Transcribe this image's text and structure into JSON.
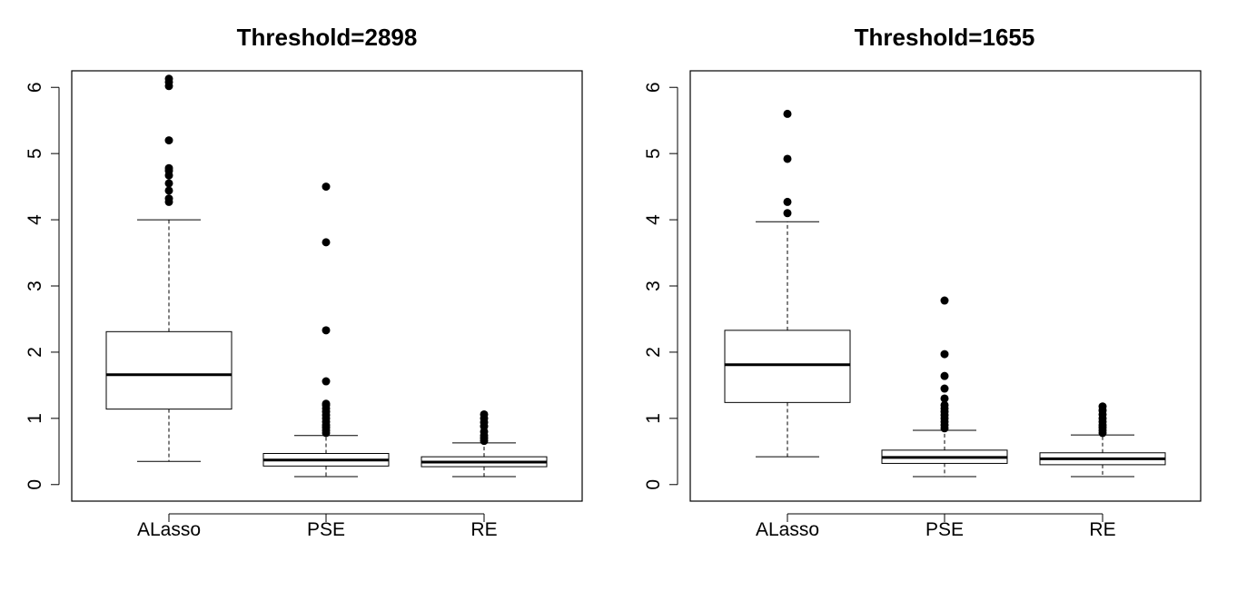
{
  "chart_data": [
    {
      "type": "boxplot",
      "title": "Threshold=2898",
      "categories": [
        "ALasso",
        "PSE",
        "RE"
      ],
      "ylim": [
        -0.25,
        6.25
      ],
      "yticks": [
        0,
        1,
        2,
        3,
        4,
        5,
        6
      ],
      "series": [
        {
          "category": "ALasso",
          "whisker_low": 0.35,
          "q1": 1.14,
          "median": 1.66,
          "q3": 2.31,
          "whisker_high": 4.0,
          "outliers": [
            4.27,
            4.32,
            4.44,
            4.55,
            4.67,
            4.74,
            4.78,
            5.2,
            6.02,
            6.08,
            6.13
          ]
        },
        {
          "category": "PSE",
          "whisker_low": 0.12,
          "q1": 0.28,
          "median": 0.37,
          "q3": 0.47,
          "whisker_high": 0.74,
          "outliers": [
            0.78,
            0.82,
            0.86,
            0.9,
            0.95,
            1.0,
            1.05,
            1.1,
            1.15,
            1.2,
            1.22,
            1.56,
            2.33,
            3.66,
            4.5
          ]
        },
        {
          "category": "RE",
          "whisker_low": 0.12,
          "q1": 0.27,
          "median": 0.34,
          "q3": 0.42,
          "whisker_high": 0.63,
          "outliers": [
            0.66,
            0.7,
            0.74,
            0.8,
            0.88,
            0.94,
            1.0,
            1.06
          ]
        }
      ]
    },
    {
      "type": "boxplot",
      "title": "Threshold=1655",
      "categories": [
        "ALasso",
        "PSE",
        "RE"
      ],
      "ylim": [
        -0.25,
        6.25
      ],
      "yticks": [
        0,
        1,
        2,
        3,
        4,
        5,
        6
      ],
      "series": [
        {
          "category": "ALasso",
          "whisker_low": 0.42,
          "q1": 1.24,
          "median": 1.81,
          "q3": 2.33,
          "whisker_high": 3.97,
          "outliers": [
            4.1,
            4.27,
            4.92,
            5.6
          ]
        },
        {
          "category": "PSE",
          "whisker_low": 0.12,
          "q1": 0.32,
          "median": 0.41,
          "q3": 0.52,
          "whisker_high": 0.82,
          "outliers": [
            0.85,
            0.9,
            0.95,
            1.0,
            1.05,
            1.1,
            1.15,
            1.2,
            1.3,
            1.45,
            1.64,
            1.97,
            2.78
          ]
        },
        {
          "category": "RE",
          "whisker_low": 0.12,
          "q1": 0.3,
          "median": 0.39,
          "q3": 0.48,
          "whisker_high": 0.75,
          "outliers": [
            0.78,
            0.82,
            0.86,
            0.9,
            0.95,
            1.0,
            1.06,
            1.12,
            1.18
          ]
        }
      ]
    }
  ]
}
